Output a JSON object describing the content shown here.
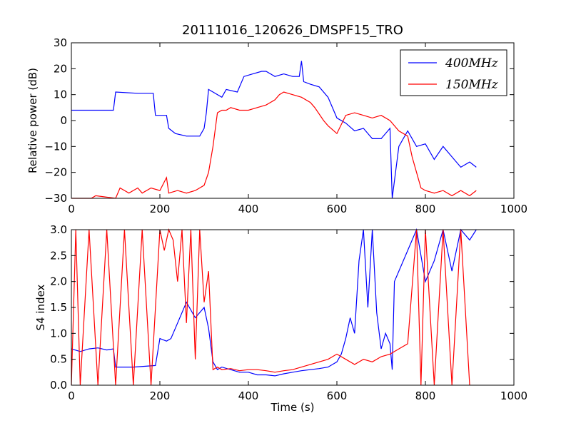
{
  "figure": {
    "title": "20111016_120626_DMSPF15_TRO"
  },
  "chart_data": [
    {
      "type": "line",
      "panel": "top",
      "title": "20111016_120626_DMSPF15_TRO",
      "xlabel": "",
      "ylabel": "Relative power (dB)",
      "xlim": [
        0,
        1000
      ],
      "ylim": [
        -30,
        30
      ],
      "xticks": [
        "0",
        "200",
        "400",
        "600",
        "800",
        "1000"
      ],
      "yticks": [
        "−30",
        "−20",
        "−10",
        "0",
        "10",
        "20",
        "30"
      ],
      "grid": false,
      "legend": "top-right",
      "series": [
        {
          "name": "400MHz",
          "legend_label": "400MHz",
          "color": "#0000ff",
          "x": [
            0,
            50,
            95,
            100,
            150,
            185,
            190,
            215,
            220,
            235,
            260,
            290,
            300,
            305,
            310,
            320,
            340,
            350,
            375,
            390,
            410,
            430,
            440,
            460,
            480,
            500,
            515,
            520,
            525,
            540,
            560,
            580,
            600,
            620,
            640,
            660,
            680,
            700,
            720,
            725,
            740,
            760,
            780,
            800,
            820,
            840,
            860,
            880,
            900,
            915
          ],
          "y": [
            4,
            4,
            4,
            11,
            10.5,
            10.5,
            2,
            2,
            -3,
            -5,
            -6,
            -6,
            -3,
            3,
            12,
            11,
            9,
            12,
            11,
            17,
            18,
            19,
            19,
            17,
            18,
            17,
            17,
            23,
            15,
            14,
            13,
            9,
            1,
            -1,
            -4,
            -3,
            -7,
            -7,
            -3,
            -30,
            -10,
            -4,
            -10,
            -9,
            -15,
            -10,
            -14,
            -18,
            -16,
            -18
          ]
        },
        {
          "name": "150MHz",
          "legend_label": "150MHz",
          "color": "#ff0000",
          "x": [
            0,
            45,
            55,
            100,
            110,
            130,
            150,
            160,
            180,
            200,
            215,
            220,
            240,
            260,
            280,
            300,
            310,
            320,
            330,
            340,
            350,
            360,
            380,
            400,
            420,
            440,
            460,
            470,
            480,
            500,
            520,
            540,
            550,
            570,
            580,
            600,
            620,
            640,
            660,
            680,
            700,
            720,
            740,
            760,
            770,
            780,
            790,
            800,
            820,
            840,
            860,
            880,
            900,
            915
          ],
          "y": [
            -30,
            -30,
            -29,
            -30,
            -26,
            -28,
            -26,
            -28,
            -26,
            -27,
            -22,
            -28,
            -27,
            -28,
            -27,
            -25,
            -20,
            -10,
            3,
            4,
            4,
            5,
            4,
            4,
            5,
            6,
            8,
            10,
            11,
            10,
            9,
            7,
            5,
            0,
            -2,
            -5,
            2,
            3,
            2,
            1,
            2,
            0,
            -4,
            -6,
            -14,
            -20,
            -26,
            -27,
            -28,
            -27,
            -29,
            -27,
            -29,
            -27
          ]
        }
      ]
    },
    {
      "type": "line",
      "panel": "bottom",
      "xlabel": "Time (s)",
      "ylabel": "S4 index",
      "xlim": [
        0,
        1000
      ],
      "ylim": [
        0,
        3
      ],
      "xticks": [
        "0",
        "200",
        "400",
        "600",
        "800",
        "1000"
      ],
      "yticks": [
        "0.0",
        "0.5",
        "1.0",
        "1.5",
        "2.0",
        "2.5",
        "3.0"
      ],
      "grid": false,
      "series": [
        {
          "name": "400MHz",
          "color": "#0000ff",
          "x": [
            0,
            20,
            40,
            60,
            80,
            95,
            100,
            140,
            190,
            200,
            215,
            225,
            240,
            260,
            280,
            300,
            310,
            320,
            330,
            340,
            360,
            380,
            400,
            420,
            440,
            460,
            480,
            500,
            520,
            540,
            560,
            580,
            600,
            610,
            620,
            630,
            640,
            650,
            660,
            670,
            680,
            690,
            700,
            710,
            720,
            725,
            730,
            760,
            780,
            800,
            820,
            840,
            860,
            880,
            900,
            915
          ],
          "y": [
            0.7,
            0.65,
            0.7,
            0.72,
            0.68,
            0.7,
            0.35,
            0.35,
            0.38,
            0.9,
            0.85,
            0.9,
            1.2,
            1.6,
            1.3,
            1.5,
            1.1,
            0.45,
            0.3,
            0.35,
            0.3,
            0.25,
            0.25,
            0.2,
            0.2,
            0.18,
            0.22,
            0.25,
            0.28,
            0.3,
            0.32,
            0.35,
            0.45,
            0.6,
            0.9,
            1.3,
            1.0,
            2.4,
            3.0,
            1.5,
            3.0,
            1.4,
            0.7,
            1.0,
            0.8,
            0.3,
            2.0,
            2.6,
            3.0,
            2.0,
            2.4,
            3.0,
            2.2,
            3.0,
            2.8,
            3.0
          ]
        },
        {
          "name": "150MHz",
          "color": "#ff0000",
          "x": [
            0,
            10,
            20,
            40,
            60,
            80,
            100,
            120,
            140,
            160,
            180,
            200,
            210,
            220,
            230,
            240,
            250,
            260,
            270,
            280,
            290,
            300,
            310,
            320,
            330,
            340,
            360,
            380,
            400,
            420,
            440,
            460,
            480,
            500,
            520,
            540,
            560,
            580,
            600,
            620,
            640,
            660,
            680,
            700,
            720,
            740,
            760,
            780,
            790,
            800,
            820,
            840,
            860,
            880,
            900
          ],
          "y": [
            0,
            3,
            0,
            3,
            0,
            3,
            0,
            3,
            0,
            3,
            0,
            3,
            2.6,
            3.0,
            2.8,
            2.0,
            3.0,
            1.2,
            3.0,
            0.5,
            3.0,
            1.6,
            2.2,
            0.3,
            0.35,
            0.3,
            0.32,
            0.28,
            0.3,
            0.3,
            0.28,
            0.25,
            0.28,
            0.3,
            0.35,
            0.4,
            0.45,
            0.5,
            0.6,
            0.5,
            0.4,
            0.5,
            0.45,
            0.55,
            0.6,
            0.7,
            0.8,
            3.0,
            0,
            3.0,
            0,
            3.0,
            0,
            3.0,
            0
          ]
        }
      ]
    }
  ]
}
